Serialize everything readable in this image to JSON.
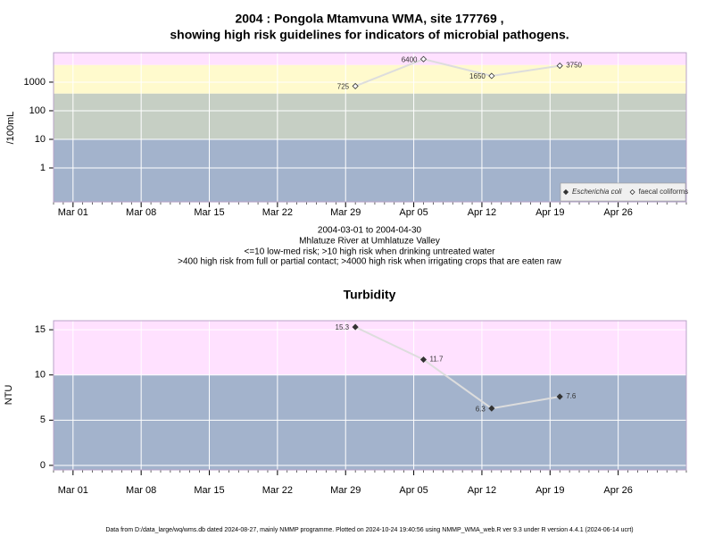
{
  "chart_data": [
    {
      "type": "line",
      "title": [
        "2004 : Pongola Mtamvuna WMA, site 177769 ,",
        "showing high risk guidelines for indicators of microbial pathogens."
      ],
      "subtitle": [
        "2004-03-01 to 2004-04-30",
        "Mhlatuze River at Umhlatuze Valley",
        "<=10 low-med risk; >10 high risk when drinking untreated water",
        ">400 high risk from full or partial contact; >4000 high risk when irrigating crops that are eaten raw"
      ],
      "ylabel": "/100mL",
      "log_scale": true,
      "x": [
        "Mar 30",
        "Apr 06",
        "Apr 13",
        "Apr 20"
      ],
      "xlim": [
        "Feb 28",
        "May 03"
      ],
      "xticks": [
        "Mar 01",
        "Mar 08",
        "Mar 15",
        "Mar 22",
        "Mar 29",
        "Apr 05",
        "Apr 12",
        "Apr 19",
        "Apr 26"
      ],
      "ylim": [
        0.065,
        10700
      ],
      "yticks": [
        1,
        10,
        100,
        1000
      ],
      "thresholds": [
        10,
        400,
        4000
      ],
      "band_colors": [
        "#a3b3cc",
        "#c6cfc4",
        "#fffacd",
        "#ffe1ff"
      ],
      "grid": true,
      "legend": "lower right",
      "series": [
        {
          "name": "Escherichia coli",
          "color": "#333333",
          "marker": "filled",
          "values": [
            null,
            null,
            null,
            null
          ]
        },
        {
          "name": "faecal coliforms",
          "color": "#333333",
          "marker": "open",
          "values": [
            725,
            6400,
            1650,
            3750
          ]
        }
      ]
    },
    {
      "type": "line",
      "title": "Turbidity",
      "ylabel": "NTU",
      "log_scale": false,
      "x": [
        "Mar 30",
        "Apr 06",
        "Apr 13",
        "Apr 20"
      ],
      "xlim": [
        "Feb 28",
        "May 03"
      ],
      "xticks": [
        "Mar 01",
        "Mar 08",
        "Mar 15",
        "Mar 22",
        "Mar 29",
        "Apr 05",
        "Apr 12",
        "Apr 19",
        "Apr 26"
      ],
      "ylim": [
        -0.5,
        16
      ],
      "yticks": [
        0,
        5,
        10,
        15
      ],
      "thresholds": [
        10
      ],
      "band_colors": [
        "#a3b3cc",
        "#ffe1ff"
      ],
      "grid": true,
      "series": [
        {
          "name": "Turbidity",
          "color": "#333333",
          "marker": "filled",
          "values": [
            15.3,
            11.7,
            6.3,
            7.6
          ]
        }
      ]
    }
  ],
  "footer": "Data from D:/data_large/wq/wms.db dated 2024-08-27, mainly NMMP programme. Plotted on 2024-10-24 19:40:56 using NMMP_WMA_web.R ver 9.3 under R version 4.4.1 (2024-06-14 ucrt)"
}
